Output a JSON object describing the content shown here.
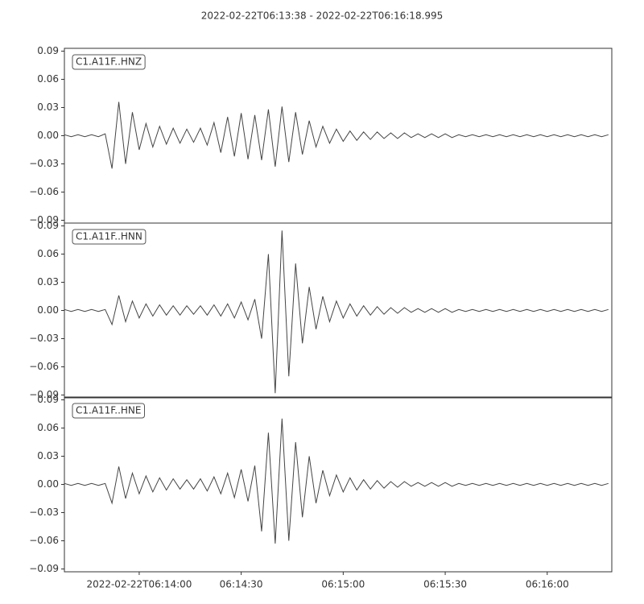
{
  "chart_data": {
    "type": "line",
    "title": "2022-02-22T06:13:38  -  2022-02-22T06:16:18.995",
    "xlim": [
      "2022-02-22T06:13:38",
      "2022-02-22T06:16:18.995"
    ],
    "xticks": [
      {
        "value": "2022-02-22T06:14:00",
        "label": "2022-02-22T06:14:00"
      },
      {
        "value": "2022-02-22T06:14:30",
        "label": "06:14:30"
      },
      {
        "value": "2022-02-22T06:15:00",
        "label": "06:15:00"
      },
      {
        "value": "2022-02-22T06:15:30",
        "label": "06:15:30"
      },
      {
        "value": "2022-02-22T06:16:00",
        "label": "06:16:00"
      }
    ],
    "ylim": [
      -0.093,
      0.093
    ],
    "yticks": [
      {
        "value": -0.09,
        "label": "−0.09"
      },
      {
        "value": -0.06,
        "label": "−0.06"
      },
      {
        "value": -0.03,
        "label": "−0.03"
      },
      {
        "value": 0,
        "label": "0.00"
      },
      0.03,
      0.06,
      0.09
    ],
    "x": [
      "2022-02-22T06:13:38",
      "2022-02-22T06:13:40",
      "2022-02-22T06:13:42",
      "2022-02-22T06:13:44",
      "2022-02-22T06:13:46",
      "2022-02-22T06:13:48",
      "2022-02-22T06:13:50",
      "2022-02-22T06:13:52",
      "2022-02-22T06:13:54",
      "2022-02-22T06:13:56",
      "2022-02-22T06:13:58",
      "2022-02-22T06:14:00",
      "2022-02-22T06:14:02",
      "2022-02-22T06:14:04",
      "2022-02-22T06:14:06",
      "2022-02-22T06:14:08",
      "2022-02-22T06:14:10",
      "2022-02-22T06:14:12",
      "2022-02-22T06:14:14",
      "2022-02-22T06:14:16",
      "2022-02-22T06:14:18",
      "2022-02-22T06:14:20",
      "2022-02-22T06:14:22",
      "2022-02-22T06:14:24",
      "2022-02-22T06:14:26",
      "2022-02-22T06:14:28",
      "2022-02-22T06:14:30",
      "2022-02-22T06:14:32",
      "2022-02-22T06:14:34",
      "2022-02-22T06:14:36",
      "2022-02-22T06:14:38",
      "2022-02-22T06:14:40",
      "2022-02-22T06:14:42",
      "2022-02-22T06:14:44",
      "2022-02-22T06:14:46",
      "2022-02-22T06:14:48",
      "2022-02-22T06:14:50",
      "2022-02-22T06:14:52",
      "2022-02-22T06:14:54",
      "2022-02-22T06:14:56",
      "2022-02-22T06:14:58",
      "2022-02-22T06:15:00",
      "2022-02-22T06:15:02",
      "2022-02-22T06:15:04",
      "2022-02-22T06:15:06",
      "2022-02-22T06:15:08",
      "2022-02-22T06:15:10",
      "2022-02-22T06:15:12",
      "2022-02-22T06:15:14",
      "2022-02-22T06:15:16",
      "2022-02-22T06:15:18",
      "2022-02-22T06:15:20",
      "2022-02-22T06:15:22",
      "2022-02-22T06:15:24",
      "2022-02-22T06:15:26",
      "2022-02-22T06:15:28",
      "2022-02-22T06:15:30",
      "2022-02-22T06:15:32",
      "2022-02-22T06:15:34",
      "2022-02-22T06:15:36",
      "2022-02-22T06:15:38",
      "2022-02-22T06:15:40",
      "2022-02-22T06:15:42",
      "2022-02-22T06:15:44",
      "2022-02-22T06:15:46",
      "2022-02-22T06:15:48",
      "2022-02-22T06:15:50",
      "2022-02-22T06:15:52",
      "2022-02-22T06:15:54",
      "2022-02-22T06:15:56",
      "2022-02-22T06:15:58",
      "2022-02-22T06:16:00",
      "2022-02-22T06:16:02",
      "2022-02-22T06:16:04",
      "2022-02-22T06:16:06",
      "2022-02-22T06:16:08",
      "2022-02-22T06:16:10",
      "2022-02-22T06:16:12",
      "2022-02-22T06:16:14",
      "2022-02-22T06:16:16",
      "2022-02-22T06:16:18"
    ],
    "series": [
      {
        "name": "C1.A11F..HNZ",
        "color": "#444444",
        "values": [
          0.001,
          -0.001,
          0.001,
          -0.001,
          0.001,
          -0.001,
          0.002,
          -0.035,
          0.036,
          -0.03,
          0.025,
          -0.015,
          0.013,
          -0.012,
          0.01,
          -0.009,
          0.008,
          -0.008,
          0.007,
          -0.007,
          0.008,
          -0.01,
          0.014,
          -0.018,
          0.02,
          -0.022,
          0.024,
          -0.025,
          0.022,
          -0.026,
          0.028,
          -0.033,
          0.031,
          -0.028,
          0.025,
          -0.02,
          0.016,
          -0.012,
          0.01,
          -0.008,
          0.007,
          -0.006,
          0.005,
          -0.005,
          0.004,
          -0.004,
          0.004,
          -0.003,
          0.003,
          -0.003,
          0.003,
          -0.002,
          0.002,
          -0.002,
          0.002,
          -0.002,
          0.002,
          -0.002,
          0.001,
          -0.001,
          0.001,
          -0.001,
          0.001,
          -0.001,
          0.001,
          -0.001,
          0.001,
          -0.001,
          0.001,
          -0.001,
          0.001,
          -0.001,
          0.001,
          -0.001,
          0.001,
          -0.001,
          0.001,
          -0.001,
          0.001,
          -0.001,
          0.001
        ]
      },
      {
        "name": "C1.A11F..HNN",
        "color": "#444444",
        "values": [
          0.001,
          -0.001,
          0.001,
          -0.001,
          0.001,
          -0.001,
          0.001,
          -0.015,
          0.016,
          -0.012,
          0.01,
          -0.008,
          0.007,
          -0.006,
          0.006,
          -0.005,
          0.005,
          -0.005,
          0.005,
          -0.004,
          0.005,
          -0.005,
          0.006,
          -0.006,
          0.007,
          -0.008,
          0.009,
          -0.01,
          0.012,
          -0.03,
          0.06,
          -0.088,
          0.085,
          -0.07,
          0.05,
          -0.035,
          0.025,
          -0.02,
          0.015,
          -0.012,
          0.01,
          -0.008,
          0.007,
          -0.006,
          0.005,
          -0.005,
          0.004,
          -0.004,
          0.003,
          -0.003,
          0.003,
          -0.002,
          0.002,
          -0.002,
          0.002,
          -0.002,
          0.002,
          -0.002,
          0.001,
          -0.001,
          0.001,
          -0.001,
          0.001,
          -0.001,
          0.001,
          -0.001,
          0.001,
          -0.001,
          0.001,
          -0.001,
          0.001,
          -0.001,
          0.001,
          -0.001,
          0.001,
          -0.001,
          0.001,
          -0.001,
          0.001,
          -0.001,
          0.001
        ]
      },
      {
        "name": "C1.A11F..HNE",
        "color": "#444444",
        "values": [
          0.001,
          -0.001,
          0.001,
          -0.001,
          0.001,
          -0.001,
          0.001,
          -0.02,
          0.019,
          -0.015,
          0.012,
          -0.01,
          0.009,
          -0.008,
          0.007,
          -0.006,
          0.006,
          -0.005,
          0.005,
          -0.005,
          0.006,
          -0.007,
          0.008,
          -0.01,
          0.012,
          -0.014,
          0.016,
          -0.018,
          0.02,
          -0.05,
          0.055,
          -0.063,
          0.07,
          -0.06,
          0.045,
          -0.035,
          0.03,
          -0.02,
          0.015,
          -0.012,
          0.01,
          -0.008,
          0.007,
          -0.006,
          0.005,
          -0.005,
          0.004,
          -0.004,
          0.003,
          -0.003,
          0.003,
          -0.002,
          0.002,
          -0.002,
          0.002,
          -0.002,
          0.002,
          -0.002,
          0.001,
          -0.001,
          0.001,
          -0.001,
          0.001,
          -0.001,
          0.001,
          -0.001,
          0.001,
          -0.001,
          0.001,
          -0.001,
          0.001,
          -0.001,
          0.001,
          -0.001,
          0.001,
          -0.001,
          0.001,
          -0.001,
          0.001,
          -0.001,
          0.001
        ]
      }
    ]
  }
}
